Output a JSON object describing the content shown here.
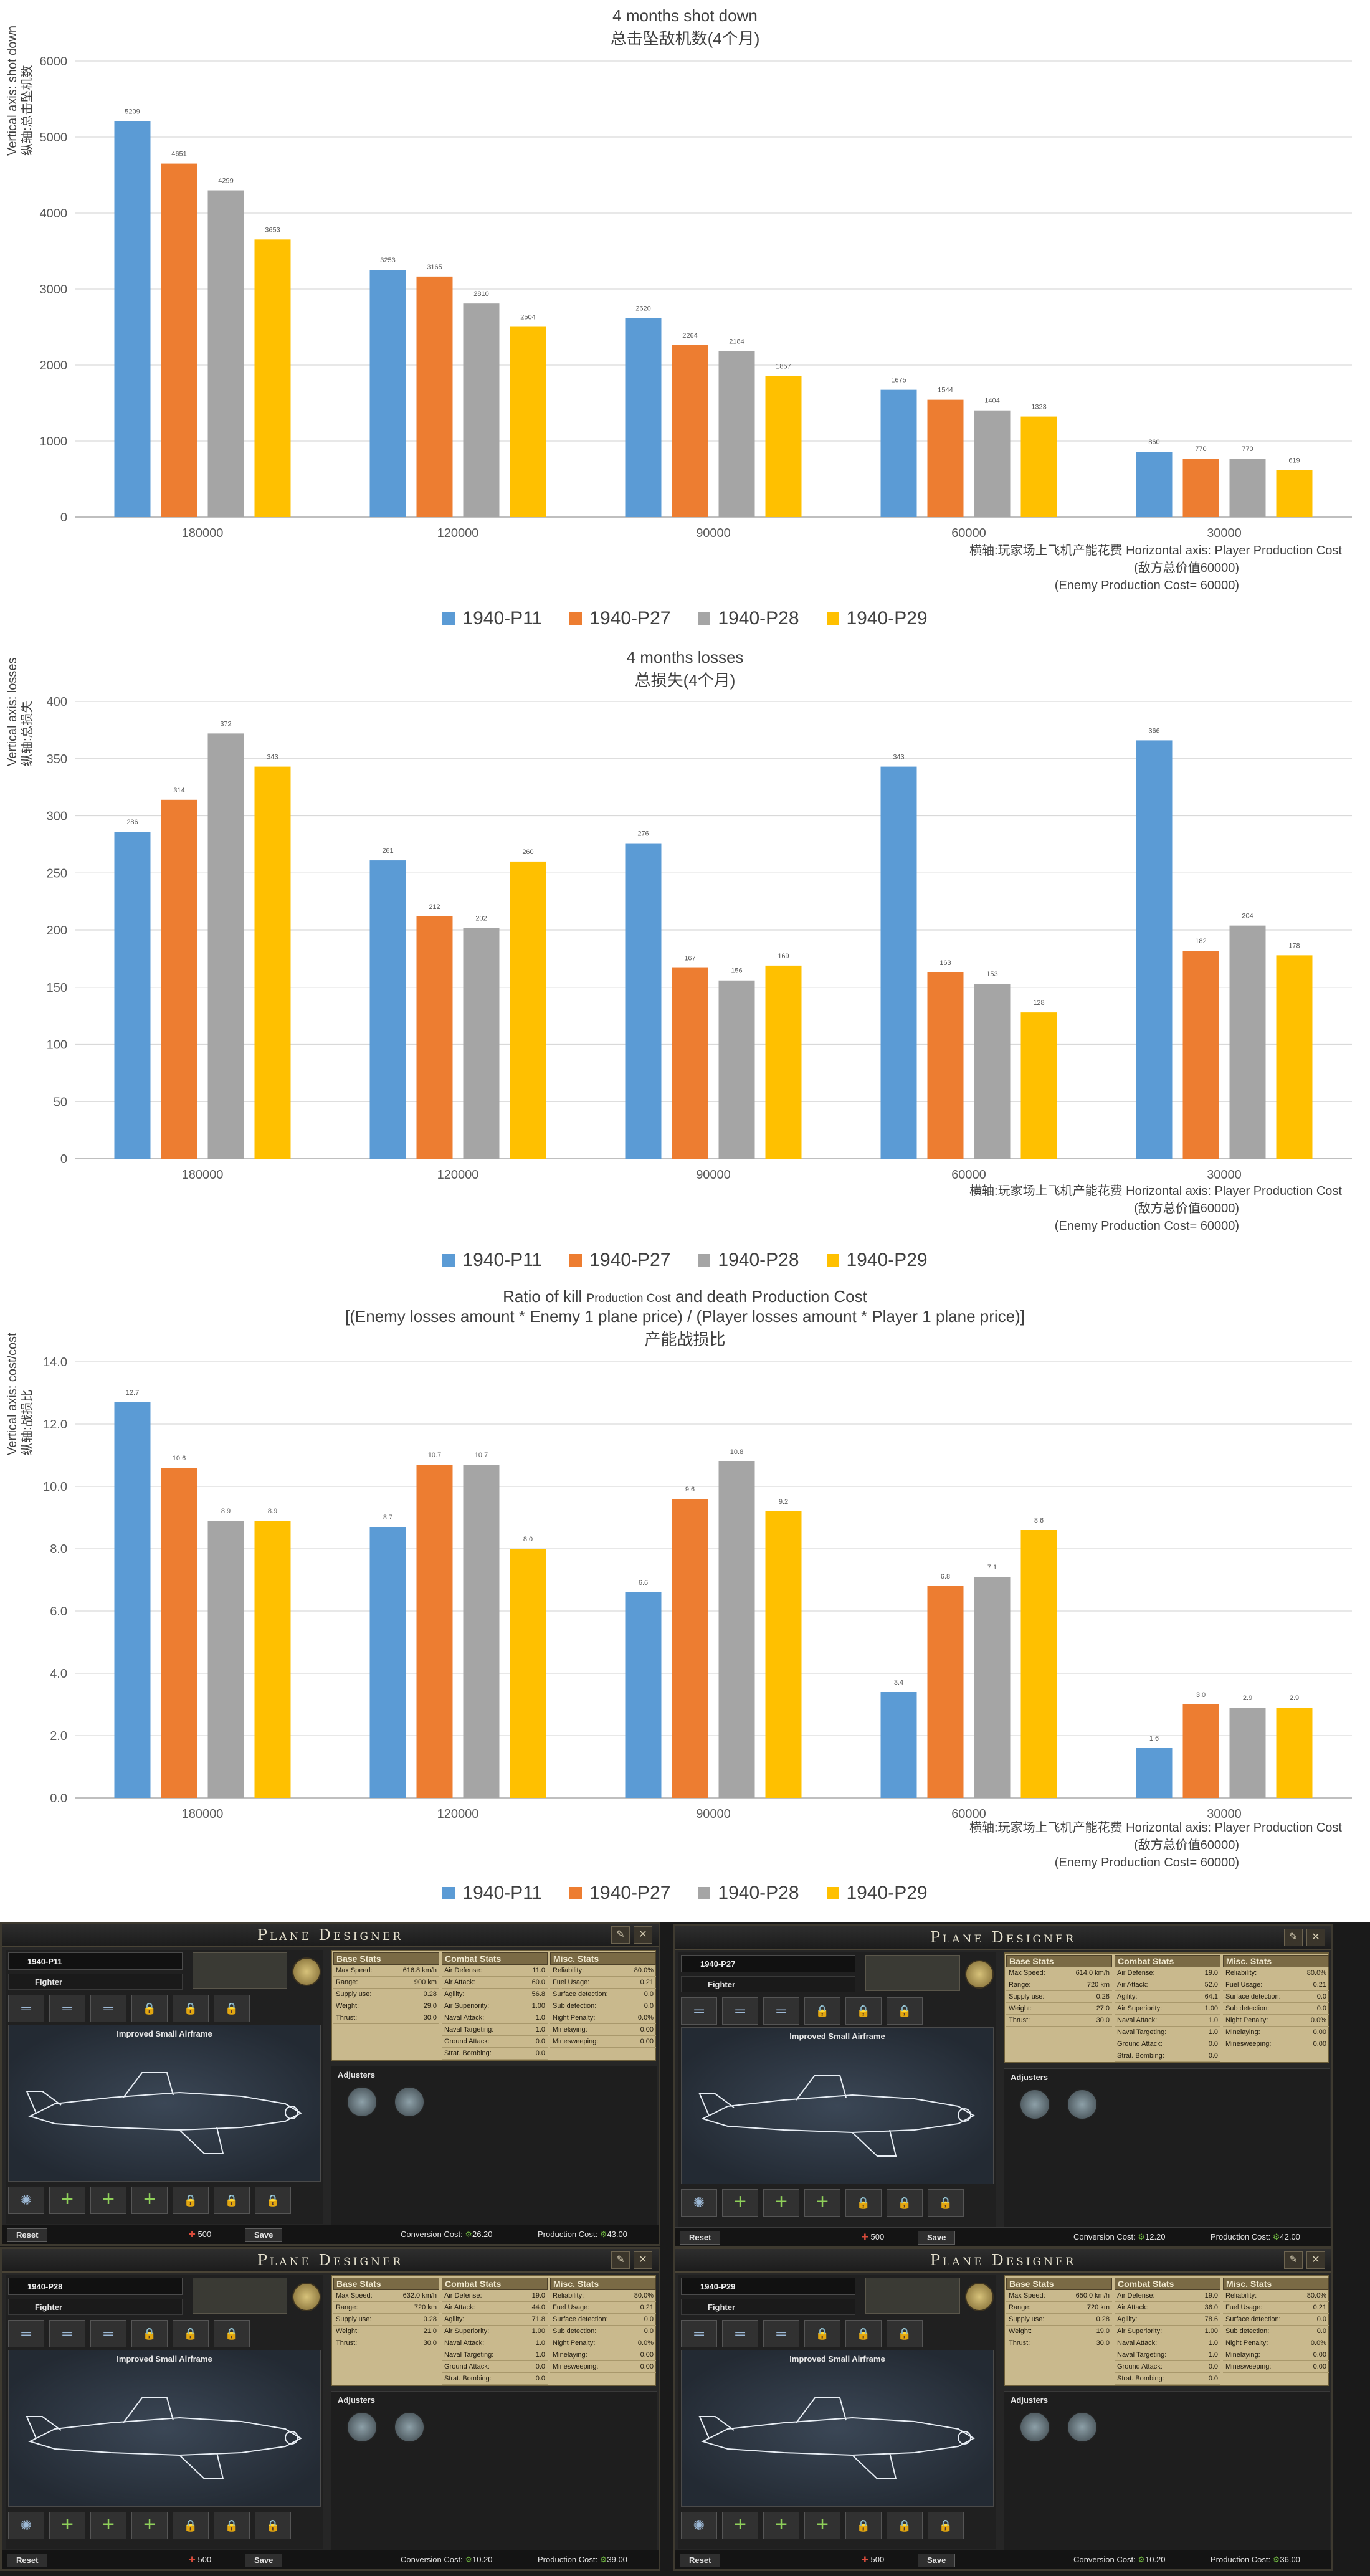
{
  "chart_data": [
    {
      "type": "bar",
      "title": "4 months shot down",
      "subtitle": "总击坠敌机数(4个月)",
      "ylabel": "Vertical axis: shot down",
      "ylabel2": "纵轴:总击坠机数",
      "xnote": [
        "横轴:玩家场上飞机产能花费  Horizontal axis: Player Production Cost",
        "(敌方总价值60000)",
        "(Enemy Production Cost= 60000)"
      ],
      "categories": [
        "180000",
        "120000",
        "90000",
        "60000",
        "30000"
      ],
      "ylim": [
        0,
        6000
      ],
      "yticks": [
        0,
        1000,
        2000,
        3000,
        4000,
        5000,
        6000
      ],
      "ytick_labels": [
        "0",
        "1000",
        "2000",
        "3000",
        "4000",
        "5000",
        "6000"
      ],
      "series": [
        {
          "name": "1940-P11",
          "values": [
            5209,
            3253,
            2620,
            1675,
            860
          ],
          "labels": [
            "5209",
            "3253",
            "2620",
            "1675",
            "860"
          ]
        },
        {
          "name": "1940-P27",
          "values": [
            4651,
            3165,
            2264,
            1544,
            770
          ],
          "labels": [
            "4651",
            "3165",
            "2264",
            "1544",
            "770"
          ]
        },
        {
          "name": "1940-P28",
          "values": [
            4299,
            2810,
            2184,
            1404,
            770
          ],
          "labels": [
            "4299",
            "2810",
            "2184",
            "1404",
            "770"
          ]
        },
        {
          "name": "1940-P29",
          "values": [
            3653,
            2504,
            1857,
            1323,
            619
          ],
          "labels": [
            "3653",
            "2504",
            "1857",
            "1323",
            "619"
          ]
        }
      ],
      "legend": "bottom-center",
      "grid": true
    },
    {
      "type": "bar",
      "title": "4 months losses",
      "subtitle": "总损失(4个月)",
      "ylabel": "Vertical axis: losses",
      "ylabel2": "纵轴:总损失",
      "xnote": [
        "横轴:玩家场上飞机产能花费  Horizontal axis: Player Production Cost",
        "(敌方总价值60000)",
        "(Enemy Production Cost= 60000)"
      ],
      "categories": [
        "180000",
        "120000",
        "90000",
        "60000",
        "30000"
      ],
      "ylim": [
        0,
        400
      ],
      "yticks": [
        0,
        50,
        100,
        150,
        200,
        250,
        300,
        350,
        400
      ],
      "ytick_labels": [
        "0",
        "50",
        "100",
        "150",
        "200",
        "250",
        "300",
        "350",
        "400"
      ],
      "series": [
        {
          "name": "1940-P11",
          "values": [
            286,
            261,
            276,
            343,
            366
          ],
          "labels": [
            "286",
            "261",
            "276",
            "343",
            "366"
          ]
        },
        {
          "name": "1940-P27",
          "values": [
            314,
            212,
            167,
            163,
            182
          ],
          "labels": [
            "314",
            "212",
            "167",
            "163",
            "182"
          ]
        },
        {
          "name": "1940-P28",
          "values": [
            372,
            202,
            156,
            153,
            204
          ],
          "labels": [
            "372",
            "202",
            "156",
            "153",
            "204"
          ]
        },
        {
          "name": "1940-P29",
          "values": [
            343,
            260,
            169,
            128,
            178
          ],
          "labels": [
            "343",
            "260",
            "169",
            "128",
            "178"
          ]
        }
      ],
      "legend": "bottom-center",
      "grid": true
    },
    {
      "type": "bar",
      "title": "Ratio of kill Production Cost and death Production Cost",
      "title_parts": [
        "Ratio of kill ",
        "Production Cost",
        " and death Production Cost"
      ],
      "subtitle": "[(Enemy losses amount * Enemy 1 plane price) / (Player losses amount * Player 1 plane price)]",
      "subtitle2": "产能战损比",
      "ylabel": "Vertical axis: cost/cost",
      "ylabel2": "纵轴:战损比",
      "xnote": [
        "横轴:玩家场上飞机产能花费  Horizontal axis: Player Production Cost",
        "(敌方总价值60000)",
        "(Enemy Production Cost= 60000)"
      ],
      "categories": [
        "180000",
        "120000",
        "90000",
        "60000",
        "30000"
      ],
      "ylim": [
        0,
        14
      ],
      "yticks": [
        0,
        2,
        4,
        6,
        8,
        10,
        12,
        14
      ],
      "ytick_labels": [
        "0.0",
        "2.0",
        "4.0",
        "6.0",
        "8.0",
        "10.0",
        "12.0",
        "14.0"
      ],
      "series": [
        {
          "name": "1940-P11",
          "values": [
            12.7,
            8.7,
            6.6,
            3.4,
            1.6
          ],
          "labels": [
            "12.7",
            "8.7",
            "6.6",
            "3.4",
            "1.6"
          ]
        },
        {
          "name": "1940-P27",
          "values": [
            10.6,
            10.7,
            9.6,
            6.8,
            3.0
          ],
          "labels": [
            "10.6",
            "10.7",
            "9.6",
            "6.8",
            "3.0"
          ]
        },
        {
          "name": "1940-P28",
          "values": [
            8.9,
            10.7,
            10.8,
            7.1,
            2.9
          ],
          "labels": [
            "8.9",
            "10.7",
            "10.8",
            "7.1",
            "2.9"
          ]
        },
        {
          "name": "1940-P29",
          "values": [
            8.9,
            8.0,
            9.2,
            8.6,
            2.9
          ],
          "labels": [
            "8.9",
            "8.0",
            "9.2",
            "8.6",
            "2.9"
          ]
        }
      ],
      "legend": "bottom-center",
      "grid": true
    }
  ],
  "colors": {
    "1940-P11": "#5b9bd5",
    "1940-P27": "#ed7d31",
    "1940-P28": "#a5a5a5",
    "1940-P29": "#ffc000"
  },
  "designers": [
    {
      "window_title": "Plane Designer",
      "name": "1940-P11",
      "role": "Fighter",
      "airframe": "Improved Small Airframe",
      "adjusters_label": "Adjusters",
      "stats_headers": [
        "Base Stats",
        "Combat Stats",
        "Misc. Stats"
      ],
      "base": [
        [
          "Max Speed:",
          "616.8 km/h"
        ],
        [
          "Range:",
          "900 km"
        ],
        [
          "Supply use:",
          "0.28"
        ],
        [
          "Weight:",
          "29.0"
        ],
        [
          "Thrust:",
          "30.0"
        ]
      ],
      "combat": [
        [
          "Air Defense:",
          "11.0"
        ],
        [
          "Air Attack:",
          "60.0"
        ],
        [
          "Agility:",
          "56.8"
        ],
        [
          "Air Superiority:",
          "1.00"
        ],
        [
          "Naval Attack:",
          "1.0"
        ],
        [
          "Naval Targeting:",
          "1.0"
        ],
        [
          "Ground Attack:",
          "0.0"
        ],
        [
          "Strat. Bombing:",
          "0.0"
        ]
      ],
      "misc": [
        [
          "Reliability:",
          "80.0%"
        ],
        [
          "Fuel Usage:",
          "0.21"
        ],
        [
          "Surface detection:",
          "0.0"
        ],
        [
          "Sub detection:",
          "0.0"
        ],
        [
          "Night Penalty:",
          "0.0%"
        ],
        [
          "Minelaying:",
          "0.00"
        ],
        [
          "Minesweeping:",
          "0.00"
        ]
      ],
      "reset": "Reset",
      "xp": "500",
      "save": "Save",
      "conversion_label": "Conversion Cost:",
      "conversion": "26.20",
      "production_label": "Production Cost:",
      "production": "43.00"
    },
    {
      "window_title": "Plane Designer",
      "name": "1940-P27",
      "role": "Fighter",
      "airframe": "Improved Small Airframe",
      "adjusters_label": "Adjusters",
      "stats_headers": [
        "Base Stats",
        "Combat Stats",
        "Misc. Stats"
      ],
      "base": [
        [
          "Max Speed:",
          "614.0 km/h"
        ],
        [
          "Range:",
          "720 km"
        ],
        [
          "Supply use:",
          "0.28"
        ],
        [
          "Weight:",
          "27.0"
        ],
        [
          "Thrust:",
          "30.0"
        ]
      ],
      "combat": [
        [
          "Air Defense:",
          "19.0"
        ],
        [
          "Air Attack:",
          "52.0"
        ],
        [
          "Agility:",
          "64.1"
        ],
        [
          "Air Superiority:",
          "1.00"
        ],
        [
          "Naval Attack:",
          "1.0"
        ],
        [
          "Naval Targeting:",
          "1.0"
        ],
        [
          "Ground Attack:",
          "0.0"
        ],
        [
          "Strat. Bombing:",
          "0.0"
        ]
      ],
      "misc": [
        [
          "Reliability:",
          "80.0%"
        ],
        [
          "Fuel Usage:",
          "0.21"
        ],
        [
          "Surface detection:",
          "0.0"
        ],
        [
          "Sub detection:",
          "0.0"
        ],
        [
          "Night Penalty:",
          "0.0%"
        ],
        [
          "Minelaying:",
          "0.00"
        ],
        [
          "Minesweeping:",
          "0.00"
        ]
      ],
      "reset": "Reset",
      "xp": "500",
      "save": "Save",
      "conversion_label": "Conversion Cost:",
      "conversion": "12.20",
      "production_label": "Production Cost:",
      "production": "42.00"
    },
    {
      "window_title": "Plane Designer",
      "name": "1940-P28",
      "role": "Fighter",
      "airframe": "Improved Small Airframe",
      "adjusters_label": "Adjusters",
      "stats_headers": [
        "Base Stats",
        "Combat Stats",
        "Misc. Stats"
      ],
      "base": [
        [
          "Max Speed:",
          "632.0 km/h"
        ],
        [
          "Range:",
          "720 km"
        ],
        [
          "Supply use:",
          "0.28"
        ],
        [
          "Weight:",
          "21.0"
        ],
        [
          "Thrust:",
          "30.0"
        ]
      ],
      "combat": [
        [
          "Air Defense:",
          "19.0"
        ],
        [
          "Air Attack:",
          "44.0"
        ],
        [
          "Agility:",
          "71.8"
        ],
        [
          "Air Superiority:",
          "1.00"
        ],
        [
          "Naval Attack:",
          "1.0"
        ],
        [
          "Naval Targeting:",
          "1.0"
        ],
        [
          "Ground Attack:",
          "0.0"
        ],
        [
          "Strat. Bombing:",
          "0.0"
        ]
      ],
      "misc": [
        [
          "Reliability:",
          "80.0%"
        ],
        [
          "Fuel Usage:",
          "0.21"
        ],
        [
          "Surface detection:",
          "0.0"
        ],
        [
          "Sub detection:",
          "0.0"
        ],
        [
          "Night Penalty:",
          "0.0%"
        ],
        [
          "Minelaying:",
          "0.00"
        ],
        [
          "Minesweeping:",
          "0.00"
        ]
      ],
      "reset": "Reset",
      "xp": "500",
      "save": "Save",
      "conversion_label": "Conversion Cost:",
      "conversion": "10.20",
      "production_label": "Production Cost:",
      "production": "39.00"
    },
    {
      "window_title": "Plane Designer",
      "name": "1940-P29",
      "role": "Fighter",
      "airframe": "Improved Small Airframe",
      "adjusters_label": "Adjusters",
      "stats_headers": [
        "Base Stats",
        "Combat Stats",
        "Misc. Stats"
      ],
      "base": [
        [
          "Max Speed:",
          "650.0 km/h"
        ],
        [
          "Range:",
          "720 km"
        ],
        [
          "Supply use:",
          "0.28"
        ],
        [
          "Weight:",
          "19.0"
        ],
        [
          "Thrust:",
          "30.0"
        ]
      ],
      "combat": [
        [
          "Air Defense:",
          "19.0"
        ],
        [
          "Air Attack:",
          "36.0"
        ],
        [
          "Agility:",
          "78.6"
        ],
        [
          "Air Superiority:",
          "1.00"
        ],
        [
          "Naval Attack:",
          "1.0"
        ],
        [
          "Naval Targeting:",
          "1.0"
        ],
        [
          "Ground Attack:",
          "0.0"
        ],
        [
          "Strat. Bombing:",
          "0.0"
        ]
      ],
      "misc": [
        [
          "Reliability:",
          "80.0%"
        ],
        [
          "Fuel Usage:",
          "0.21"
        ],
        [
          "Surface detection:",
          "0.0"
        ],
        [
          "Sub detection:",
          "0.0"
        ],
        [
          "Night Penalty:",
          "0.0%"
        ],
        [
          "Minelaying:",
          "0.00"
        ],
        [
          "Minesweeping:",
          "0.00"
        ]
      ],
      "reset": "Reset",
      "xp": "500",
      "save": "Save",
      "conversion_label": "Conversion Cost:",
      "conversion": "10.20",
      "production_label": "Production Cost:",
      "production": "36.00"
    }
  ]
}
